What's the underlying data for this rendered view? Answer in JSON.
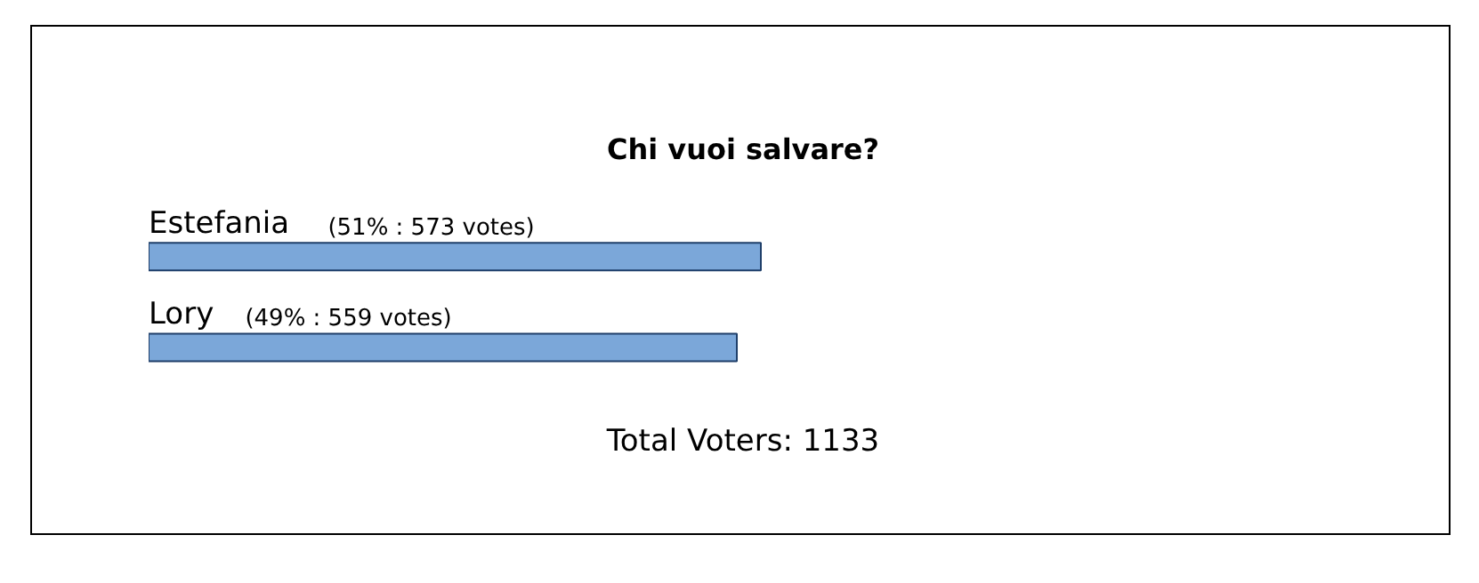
{
  "chart_data": {
    "type": "bar",
    "orientation": "horizontal",
    "title": "Chi vuoi salvare?",
    "categories": [
      "Estefania",
      "Lory"
    ],
    "values": [
      51,
      49
    ],
    "value_labels": [
      "(51% : 573 votes)",
      "(49% : 559 votes)"
    ],
    "color": "#7ba7d9",
    "tick_labels": false,
    "grid": false,
    "annotations": [
      "Total Voters: 1133"
    ]
  }
}
